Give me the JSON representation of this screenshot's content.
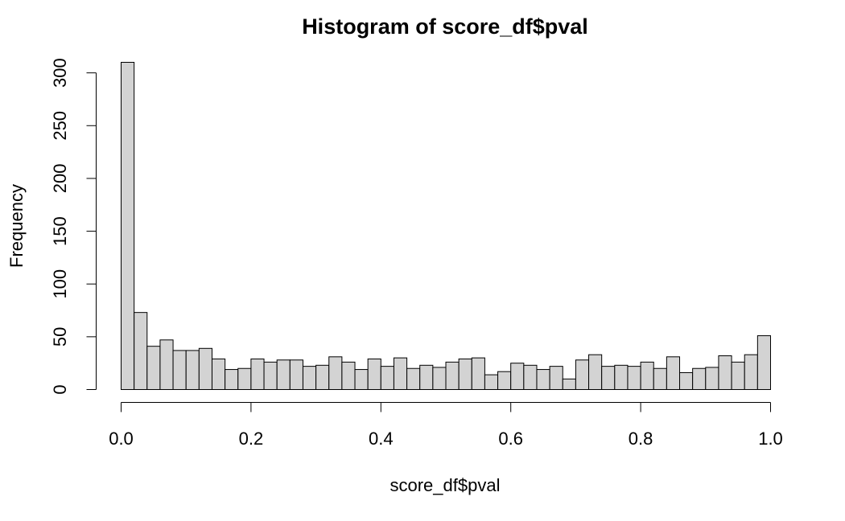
{
  "chart_data": {
    "type": "bar",
    "title": "Histogram of score_df$pval",
    "xlabel": "score_df$pval",
    "ylabel": "Frequency",
    "xlim": [
      0,
      1
    ],
    "ylim": [
      0,
      310
    ],
    "bin_width": 0.02,
    "bin_edges_start": 0.0,
    "values": [
      310,
      73,
      41,
      47,
      37,
      37,
      39,
      29,
      19,
      20,
      29,
      26,
      28,
      28,
      22,
      23,
      31,
      26,
      19,
      29,
      22,
      30,
      20,
      23,
      21,
      26,
      29,
      30,
      14,
      17,
      25,
      23,
      19,
      22,
      10,
      28,
      33,
      22,
      23,
      22,
      26,
      20,
      31,
      16,
      20,
      21,
      32,
      26,
      33,
      51
    ],
    "x_ticks": [
      0.0,
      0.2,
      0.4,
      0.6,
      0.8,
      1.0
    ],
    "x_tick_labels": [
      "0.0",
      "0.2",
      "0.4",
      "0.6",
      "0.8",
      "1.0"
    ],
    "y_ticks": [
      0,
      50,
      100,
      150,
      200,
      250,
      300
    ],
    "y_tick_labels": [
      "0",
      "50",
      "100",
      "150",
      "200",
      "250",
      "300"
    ],
    "bar_fill": "#d3d3d3",
    "bar_stroke": "#000000",
    "grid": false
  }
}
